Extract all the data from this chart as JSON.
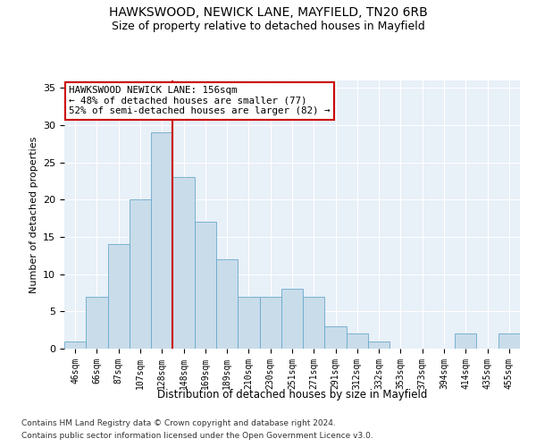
{
  "title1": "HAWKSWOOD, NEWICK LANE, MAYFIELD, TN20 6RB",
  "title2": "Size of property relative to detached houses in Mayfield",
  "xlabel": "Distribution of detached houses by size in Mayfield",
  "ylabel": "Number of detached properties",
  "bar_labels": [
    "46sqm",
    "66sqm",
    "87sqm",
    "107sqm",
    "128sqm",
    "148sqm",
    "169sqm",
    "189sqm",
    "210sqm",
    "230sqm",
    "251sqm",
    "271sqm",
    "291sqm",
    "312sqm",
    "332sqm",
    "353sqm",
    "373sqm",
    "394sqm",
    "414sqm",
    "435sqm",
    "455sqm"
  ],
  "bar_values": [
    1,
    7,
    14,
    20,
    29,
    23,
    17,
    12,
    7,
    7,
    8,
    7,
    3,
    2,
    1,
    0,
    0,
    0,
    2,
    0,
    2
  ],
  "bar_color": "#c9dcea",
  "bar_edge_color": "#6aaacb",
  "vline_color": "#cc0000",
  "annotation_title": "HAWKSWOOD NEWICK LANE: 156sqm",
  "annotation_line1": "← 48% of detached houses are smaller (77)",
  "annotation_line2": "52% of semi-detached houses are larger (82) →",
  "annotation_box_color": "#ffffff",
  "annotation_box_edge": "#cc0000",
  "ylim": [
    0,
    36
  ],
  "yticks": [
    0,
    5,
    10,
    15,
    20,
    25,
    30,
    35
  ],
  "footer1": "Contains HM Land Registry data © Crown copyright and database right 2024.",
  "footer2": "Contains public sector information licensed under the Open Government Licence v3.0.",
  "background_color": "#e8f0f8",
  "title1_fontsize": 10,
  "title2_fontsize": 9
}
